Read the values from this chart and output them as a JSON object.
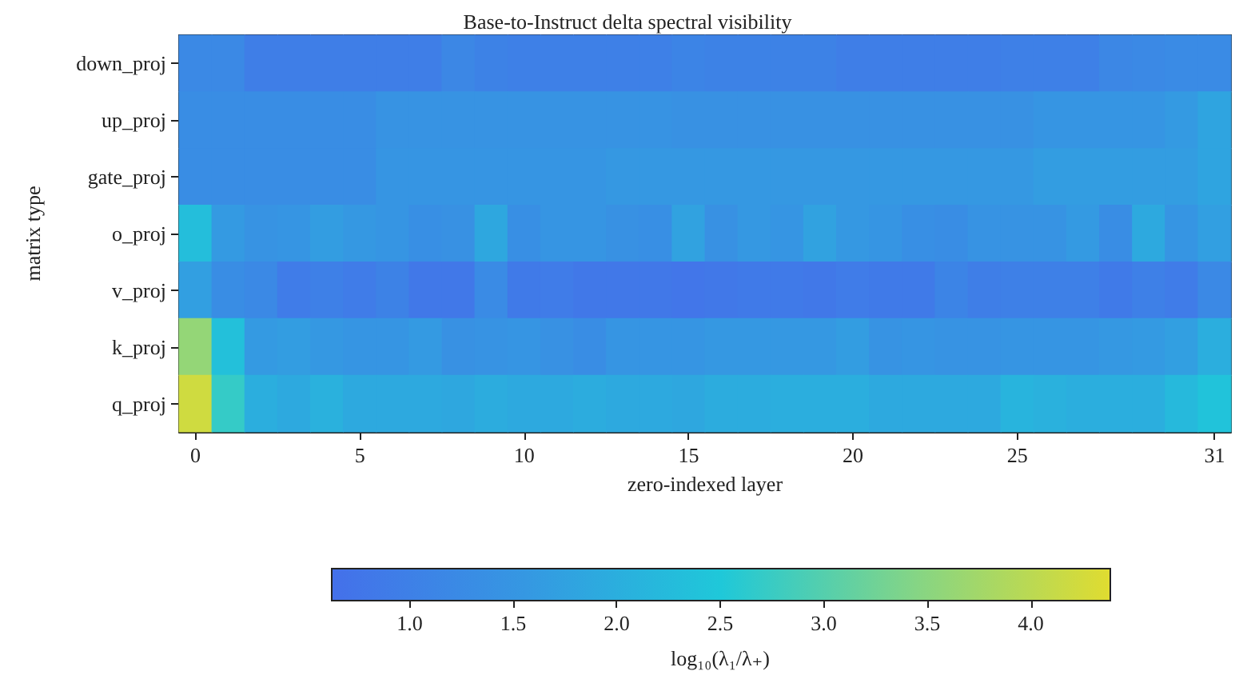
{
  "chart_data": {
    "type": "heatmap",
    "title": "Base-to-Instruct delta spectral visibility",
    "xlabel": "zero-indexed layer",
    "ylabel": "matrix type",
    "clabel": "log₁₀(λ₁/λ₊)",
    "categories": [
      "0",
      null,
      null,
      null,
      null,
      "5",
      null,
      null,
      null,
      null,
      "10",
      null,
      null,
      null,
      null,
      "15",
      null,
      null,
      null,
      null,
      "20",
      null,
      null,
      null,
      null,
      "25",
      null,
      null,
      null,
      null,
      null,
      "31"
    ],
    "y_categories": [
      "down_proj",
      "up_proj",
      "gate_proj",
      "o_proj",
      "v_proj",
      "k_proj",
      "q_proj"
    ],
    "cells": [
      [
        1.2,
        1.2,
        0.95,
        0.95,
        0.95,
        0.95,
        0.95,
        0.95,
        1.15,
        1.05,
        1.0,
        1.0,
        1.0,
        1.0,
        1.0,
        1.1,
        1.05,
        1.05,
        1.05,
        1.05,
        0.95,
        0.95,
        0.95,
        0.95,
        0.95,
        1.0,
        1.0,
        1.0,
        1.15,
        1.2,
        1.25,
        1.25
      ],
      [
        1.3,
        1.3,
        1.3,
        1.3,
        1.3,
        1.3,
        1.45,
        1.45,
        1.45,
        1.45,
        1.45,
        1.45,
        1.45,
        1.45,
        1.45,
        1.4,
        1.4,
        1.4,
        1.4,
        1.4,
        1.4,
        1.4,
        1.4,
        1.4,
        1.4,
        1.4,
        1.5,
        1.5,
        1.5,
        1.5,
        1.6,
        1.8
      ],
      [
        1.3,
        1.3,
        1.3,
        1.3,
        1.3,
        1.3,
        1.5,
        1.5,
        1.5,
        1.5,
        1.5,
        1.5,
        1.5,
        1.55,
        1.55,
        1.55,
        1.55,
        1.55,
        1.55,
        1.55,
        1.55,
        1.55,
        1.55,
        1.55,
        1.55,
        1.55,
        1.65,
        1.65,
        1.65,
        1.65,
        1.65,
        1.8
      ],
      [
        2.3,
        1.6,
        1.45,
        1.5,
        1.65,
        1.55,
        1.5,
        1.35,
        1.4,
        1.85,
        1.35,
        1.5,
        1.5,
        1.4,
        1.35,
        1.75,
        1.4,
        1.55,
        1.5,
        1.75,
        1.55,
        1.5,
        1.35,
        1.3,
        1.45,
        1.45,
        1.45,
        1.6,
        1.3,
        1.9,
        1.5,
        1.7
      ],
      [
        1.7,
        1.3,
        1.2,
        0.9,
        1.0,
        0.9,
        1.05,
        0.8,
        0.8,
        1.25,
        0.85,
        0.9,
        0.8,
        0.8,
        0.8,
        0.75,
        0.8,
        0.85,
        0.85,
        0.8,
        0.9,
        0.85,
        0.85,
        1.1,
        0.95,
        1.0,
        1.0,
        1.0,
        0.85,
        1.0,
        0.9,
        1.2
      ],
      [
        3.6,
        2.35,
        1.6,
        1.65,
        1.55,
        1.5,
        1.5,
        1.6,
        1.4,
        1.45,
        1.5,
        1.4,
        1.3,
        1.5,
        1.5,
        1.5,
        1.55,
        1.55,
        1.55,
        1.55,
        1.65,
        1.45,
        1.5,
        1.45,
        1.45,
        1.5,
        1.5,
        1.5,
        1.55,
        1.6,
        1.7,
        2.0
      ],
      [
        4.2,
        2.7,
        2.0,
        1.9,
        2.05,
        1.9,
        1.9,
        1.9,
        1.85,
        1.95,
        1.9,
        1.9,
        1.95,
        1.9,
        1.9,
        1.85,
        1.95,
        1.95,
        2.0,
        2.0,
        2.0,
        1.9,
        1.9,
        1.9,
        1.9,
        2.1,
        2.05,
        2.0,
        2.0,
        2.0,
        2.2,
        2.4
      ]
    ],
    "clim": [
      0.62,
      4.38
    ],
    "cticks": [
      {
        "value": 1,
        "label": "1.0"
      },
      {
        "value": 1.5,
        "label": "1.5"
      },
      {
        "value": 2,
        "label": "2.0"
      },
      {
        "value": 2.5,
        "label": "2.5"
      },
      {
        "value": 3,
        "label": "3.0"
      },
      {
        "value": 3.5,
        "label": "3.5"
      },
      {
        "value": 4,
        "label": "4.0"
      }
    ]
  }
}
